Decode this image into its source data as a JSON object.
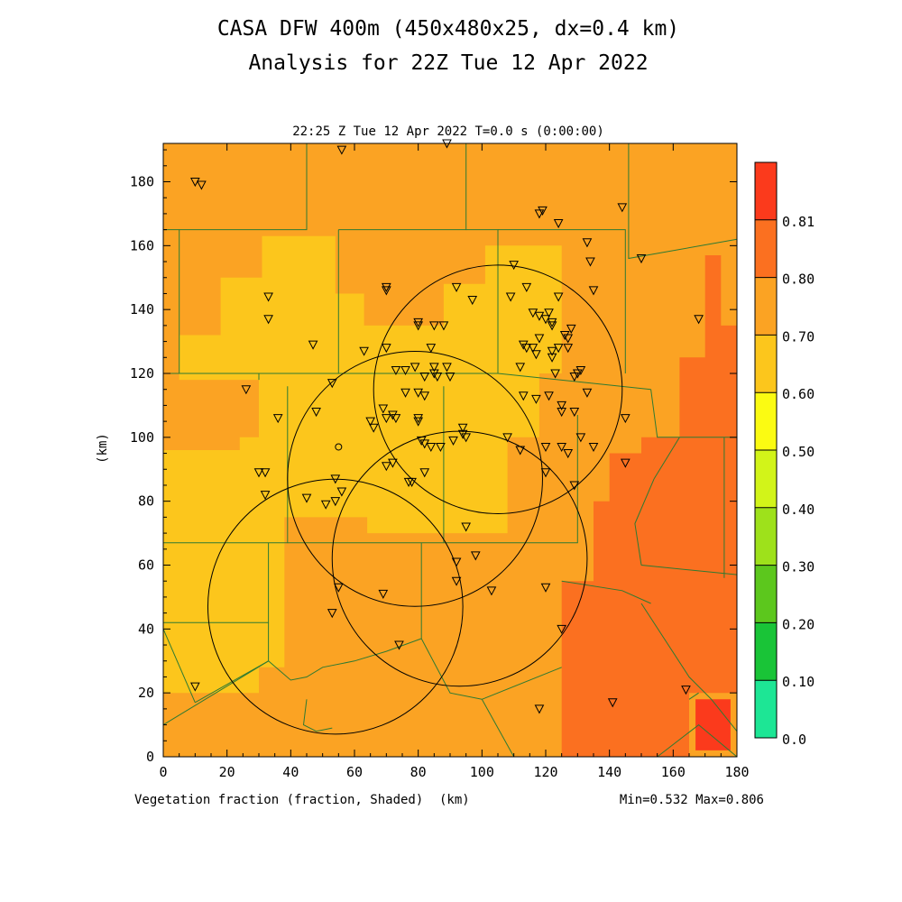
{
  "header": {
    "title_line1": "CASA DFW 400m (450x480x25, dx=0.4 km)",
    "title_line2": "Analysis for 22Z Tue 12 Apr 2022",
    "subtitle": "22:25 Z Tue 12 Apr 2022   T=0.0 s (0:00:00)"
  },
  "footer": {
    "field_label": "Vegetation fraction (fraction, Shaded)",
    "x_unit": "(km)",
    "minmax": "Min=0.532 Max=0.806"
  },
  "colors": {
    "bin_050_060": "#fcc61c",
    "bin_060_070": "#fba323",
    "bin_070_080": "#fb7020",
    "bin_080_081": "#fb3a1c",
    "boundary": "#2e7a32",
    "marker": "#000000"
  },
  "chart_data": {
    "type": "heatmap",
    "title": "CASA DFW 400m (450x480x25, dx=0.4 km)",
    "subtitle": "Analysis for 22Z Tue 12 Apr 2022",
    "xlabel": "(km)",
    "ylabel": "(km)",
    "xlim": [
      0,
      180
    ],
    "ylim": [
      0,
      192
    ],
    "x_ticks": [
      "0",
      "20",
      "40",
      "60",
      "80",
      "100",
      "120",
      "140",
      "160",
      "180"
    ],
    "y_ticks": [
      "0",
      "20",
      "40",
      "60",
      "80",
      "100",
      "120",
      "140",
      "160",
      "180"
    ],
    "colorbar": {
      "levels": [
        "0.0",
        "0.10",
        "0.20",
        "0.30",
        "0.40",
        "0.50",
        "0.60",
        "0.70",
        "0.80",
        "0.81"
      ],
      "colors": [
        "#1de695",
        "#19c437",
        "#5cc71d",
        "#9ee11b",
        "#d2f419",
        "#fbfb12",
        "#fcc61c",
        "#fba323",
        "#fb7020",
        "#fb3a1c"
      ]
    },
    "field": "Vegetation fraction",
    "min": 0.532,
    "max": 0.806,
    "regions": [
      {
        "bin": "0.50-0.60",
        "polygon": [
          [
            31,
            163
          ],
          [
            54,
            163
          ],
          [
            54,
            145
          ],
          [
            63,
            145
          ],
          [
            63,
            135
          ],
          [
            88,
            135
          ],
          [
            88,
            148
          ],
          [
            101,
            148
          ],
          [
            101,
            160
          ],
          [
            125,
            160
          ],
          [
            125,
            120
          ],
          [
            118,
            120
          ],
          [
            118,
            100
          ],
          [
            108,
            100
          ],
          [
            108,
            70
          ],
          [
            64,
            70
          ],
          [
            64,
            75
          ],
          [
            38,
            75
          ],
          [
            38,
            28
          ],
          [
            30,
            28
          ],
          [
            30,
            20
          ],
          [
            0,
            20
          ],
          [
            0,
            96
          ],
          [
            24,
            96
          ],
          [
            24,
            100
          ],
          [
            30,
            100
          ],
          [
            30,
            118
          ],
          [
            5,
            118
          ],
          [
            5,
            132
          ],
          [
            18,
            132
          ],
          [
            18,
            150
          ],
          [
            31,
            150
          ]
        ]
      },
      {
        "bin": "0.70-0.80",
        "polygon": [
          [
            175,
            157
          ],
          [
            175,
            135
          ],
          [
            180,
            135
          ],
          [
            180,
            20
          ],
          [
            165,
            20
          ],
          [
            165,
            0
          ],
          [
            125,
            0
          ],
          [
            125,
            55
          ],
          [
            135,
            55
          ],
          [
            135,
            80
          ],
          [
            140,
            80
          ],
          [
            140,
            95
          ],
          [
            150,
            95
          ],
          [
            150,
            100
          ],
          [
            162,
            100
          ],
          [
            162,
            125
          ],
          [
            170,
            125
          ],
          [
            170,
            157
          ]
        ]
      },
      {
        "bin": "0.80-0.81",
        "polygon": [
          [
            167,
            18
          ],
          [
            178,
            18
          ],
          [
            178,
            2
          ],
          [
            167,
            2
          ]
        ]
      }
    ],
    "range_rings": [
      {
        "center_km": [
          105,
          115
        ],
        "radius_km": 39
      },
      {
        "center_km": [
          79,
          87
        ],
        "radius_km": 40
      },
      {
        "center_km": [
          93,
          62
        ],
        "radius_km": 40
      },
      {
        "center_km": [
          54,
          47
        ],
        "radius_km": 40
      }
    ],
    "site_marker_km": [
      55,
      97
    ],
    "stations_km": [
      [
        10,
        180
      ],
      [
        12,
        179
      ],
      [
        56,
        190
      ],
      [
        89,
        192
      ],
      [
        118,
        170
      ],
      [
        119,
        171
      ],
      [
        124,
        167
      ],
      [
        144,
        172
      ],
      [
        133,
        161
      ],
      [
        134,
        155
      ],
      [
        150,
        156
      ],
      [
        33,
        144
      ],
      [
        33,
        137
      ],
      [
        47,
        129
      ],
      [
        70,
        147
      ],
      [
        70,
        146
      ],
      [
        92,
        147
      ],
      [
        97,
        143
      ],
      [
        110,
        154
      ],
      [
        109,
        144
      ],
      [
        114,
        147
      ],
      [
        116,
        139
      ],
      [
        118,
        138
      ],
      [
        120,
        137
      ],
      [
        121,
        139
      ],
      [
        122,
        136
      ],
      [
        122,
        135
      ],
      [
        124,
        144
      ],
      [
        126,
        132
      ],
      [
        128,
        134
      ],
      [
        135,
        146
      ],
      [
        168,
        137
      ],
      [
        63,
        127
      ],
      [
        70,
        128
      ],
      [
        80,
        135
      ],
      [
        80,
        136
      ],
      [
        85,
        135
      ],
      [
        88,
        135
      ],
      [
        84,
        128
      ],
      [
        73,
        121
      ],
      [
        76,
        121
      ],
      [
        82,
        119
      ],
      [
        79,
        122
      ],
      [
        85,
        122
      ],
      [
        85,
        120
      ],
      [
        86,
        119
      ],
      [
        89,
        122
      ],
      [
        90,
        119
      ],
      [
        113,
        129
      ],
      [
        114,
        128
      ],
      [
        116,
        128
      ],
      [
        118,
        131
      ],
      [
        117,
        126
      ],
      [
        122,
        125
      ],
      [
        122,
        127
      ],
      [
        124,
        128
      ],
      [
        127,
        128
      ],
      [
        127,
        131
      ],
      [
        123,
        120
      ],
      [
        129,
        119
      ],
      [
        131,
        121
      ],
      [
        130,
        120
      ],
      [
        112,
        122
      ],
      [
        121,
        113
      ],
      [
        117,
        112
      ],
      [
        113,
        113
      ],
      [
        125,
        108
      ],
      [
        125,
        110
      ],
      [
        129,
        108
      ],
      [
        133,
        114
      ],
      [
        26,
        115
      ],
      [
        36,
        106
      ],
      [
        48,
        108
      ],
      [
        53,
        117
      ],
      [
        65,
        105
      ],
      [
        66,
        103
      ],
      [
        70,
        106
      ],
      [
        72,
        107
      ],
      [
        73,
        106
      ],
      [
        69,
        109
      ],
      [
        76,
        114
      ],
      [
        80,
        114
      ],
      [
        82,
        113
      ],
      [
        80,
        106
      ],
      [
        80,
        105
      ],
      [
        81,
        99
      ],
      [
        82,
        98
      ],
      [
        84,
        97
      ],
      [
        87,
        97
      ],
      [
        91,
        99
      ],
      [
        94,
        103
      ],
      [
        94,
        101
      ],
      [
        95,
        100
      ],
      [
        108,
        100
      ],
      [
        112,
        96
      ],
      [
        120,
        97
      ],
      [
        125,
        97
      ],
      [
        127,
        95
      ],
      [
        131,
        100
      ],
      [
        135,
        97
      ],
      [
        145,
        106
      ],
      [
        145,
        92
      ],
      [
        120,
        89
      ],
      [
        129,
        85
      ],
      [
        32,
        89
      ],
      [
        30,
        89
      ],
      [
        32,
        82
      ],
      [
        45,
        81
      ],
      [
        51,
        79
      ],
      [
        54,
        87
      ],
      [
        54,
        80
      ],
      [
        56,
        83
      ],
      [
        70,
        91
      ],
      [
        72,
        92
      ],
      [
        78,
        86
      ],
      [
        77,
        86
      ],
      [
        82,
        89
      ],
      [
        95,
        72
      ],
      [
        98,
        63
      ],
      [
        92,
        61
      ],
      [
        92,
        55
      ],
      [
        55,
        53
      ],
      [
        69,
        51
      ],
      [
        103,
        52
      ],
      [
        120,
        53
      ],
      [
        53,
        45
      ],
      [
        74,
        35
      ],
      [
        125,
        40
      ],
      [
        118,
        15
      ],
      [
        141,
        17
      ],
      [
        164,
        21
      ],
      [
        10,
        22
      ]
    ]
  }
}
